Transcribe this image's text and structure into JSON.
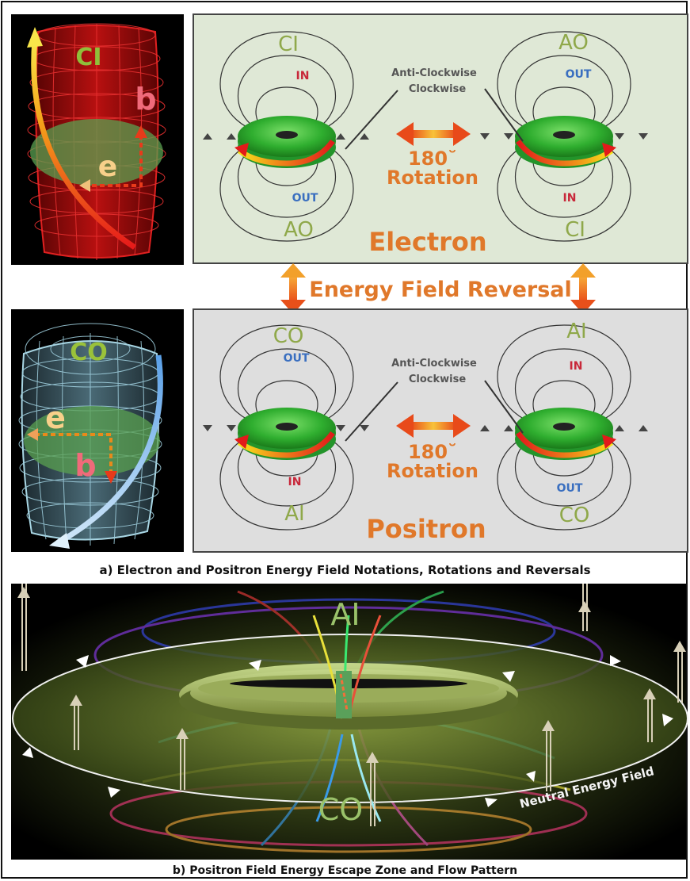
{
  "electron_panel": {
    "left": {
      "top_label": "CI",
      "in_label": "IN",
      "out_label": "OUT",
      "bottom_label": "AO"
    },
    "right": {
      "top_label": "AO",
      "out_label": "OUT",
      "in_label": "IN",
      "bottom_label": "CI"
    },
    "spin_line1": "Anti-Clockwise",
    "spin_line2": "Clockwise",
    "rotation_value": "180˘",
    "rotation_label": "Rotation",
    "name": "Electron"
  },
  "reversal_label": "Energy Field Reversal",
  "positron_panel": {
    "left": {
      "top_label": "CO",
      "out_label": "OUT",
      "in_label": "IN",
      "bottom_label": "AI"
    },
    "right": {
      "top_label": "AI",
      "in_label": "IN",
      "out_label": "OUT",
      "bottom_label": "CO"
    },
    "spin_line1": "Anti-Clockwise",
    "spin_line2": "Clockwise",
    "rotation_value": "180˘",
    "rotation_label": "Rotation",
    "name": "Positron"
  },
  "electron_3d": {
    "top_label": "CI",
    "b_label": "b",
    "e_label": "e"
  },
  "positron_3d": {
    "top_label": "CO",
    "e_label": "e",
    "b_label": "b"
  },
  "caption_a": "a) Electron and Positron Energy Field Notations, Rotations and Reversals",
  "escape_zone": {
    "top_label": "AI",
    "bottom_label": "CO",
    "neutral_label": "Neutral Energy Field"
  },
  "caption_b": "b) Positron Field Energy Escape Zone and Flow Pattern",
  "colors": {
    "electron_grid": "#c81010",
    "positron_grid": "#7fb6c8",
    "panel_bg_top": "#dfe8d6",
    "panel_bg_bottom": "#dedede",
    "label_green": "#8fa84a",
    "label_orange": "#e0782a",
    "in_red": "#c8283a",
    "out_blue": "#3a6fc0",
    "torus_green": "#2fae2f"
  }
}
